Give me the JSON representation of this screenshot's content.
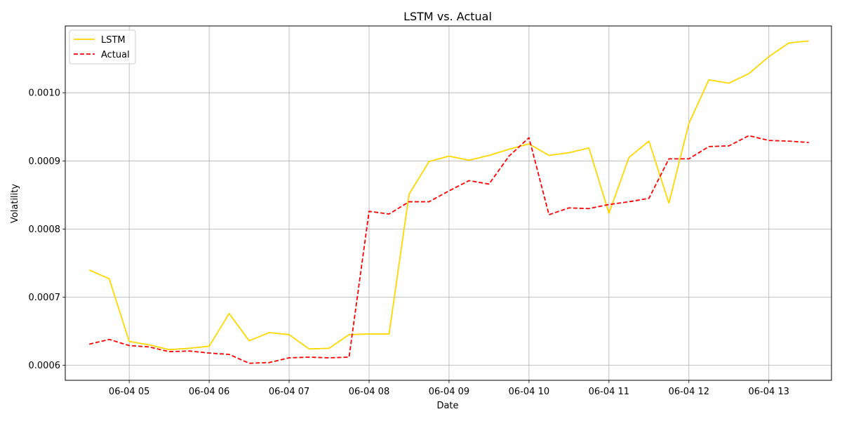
{
  "chart_data": {
    "type": "line",
    "title": "LSTM vs. Actual",
    "xlabel": "Date",
    "ylabel": "Volatility",
    "grid": true,
    "legend_position": "top-left",
    "x": [
      "04:30",
      "04:45",
      "05:00",
      "05:15",
      "05:30",
      "05:45",
      "06:00",
      "06:15",
      "06:30",
      "06:45",
      "07:00",
      "07:15",
      "07:30",
      "07:45",
      "08:00",
      "08:15",
      "08:30",
      "08:45",
      "09:00",
      "09:15",
      "09:30",
      "09:45",
      "10:00",
      "10:15",
      "10:30",
      "10:45",
      "11:00",
      "11:15",
      "11:30",
      "11:45",
      "12:00",
      "12:15",
      "12:30",
      "12:45",
      "13:00",
      "13:15",
      "13:30"
    ],
    "x_ticks": [
      "05:00",
      "06:00",
      "07:00",
      "08:00",
      "09:00",
      "10:00",
      "11:00",
      "12:00",
      "13:00"
    ],
    "x_tick_labels": [
      "06-04 05",
      "06-04 06",
      "06-04 07",
      "06-04 08",
      "06-04 09",
      "06-04 10",
      "06-04 11",
      "06-04 12",
      "06-04 13"
    ],
    "xlim": [
      "04:12",
      "13:47"
    ],
    "y_ticks": [
      0.0006,
      0.0007,
      0.0008,
      0.0009,
      0.001
    ],
    "y_tick_labels": [
      "0.0006",
      "0.0007",
      "0.0008",
      "0.0009",
      "0.0010"
    ],
    "ylim": [
      0.000578,
      0.001098
    ],
    "series": [
      {
        "name": "LSTM",
        "color": "#ffd700",
        "style": "solid",
        "values": [
          0.00074,
          0.000727,
          0.000635,
          0.00063,
          0.000623,
          0.000625,
          0.000628,
          0.000676,
          0.000636,
          0.000648,
          0.000645,
          0.000624,
          0.000625,
          0.000645,
          0.000646,
          0.000646,
          0.000851,
          0.000899,
          0.000907,
          0.000901,
          0.000908,
          0.000917,
          0.000925,
          0.000908,
          0.000912,
          0.000919,
          0.000823,
          0.000905,
          0.000929,
          0.000838,
          0.000955,
          0.001019,
          0.001014,
          0.001028,
          0.001053,
          0.001073,
          0.001076
        ]
      },
      {
        "name": "Actual",
        "color": "#ff0000",
        "style": "dashed",
        "values": [
          0.000631,
          0.000638,
          0.000629,
          0.000627,
          0.00062,
          0.000621,
          0.000618,
          0.000616,
          0.000603,
          0.000604,
          0.000611,
          0.000612,
          0.000611,
          0.000612,
          0.000826,
          0.000822,
          0.00084,
          0.00084,
          0.000856,
          0.000871,
          0.000866,
          0.000907,
          0.000934,
          0.000821,
          0.000831,
          0.00083,
          0.000836,
          0.00084,
          0.000845,
          0.000903,
          0.000903,
          0.000921,
          0.000922,
          0.000937,
          0.00093,
          0.000929,
          0.000927
        ]
      }
    ]
  }
}
